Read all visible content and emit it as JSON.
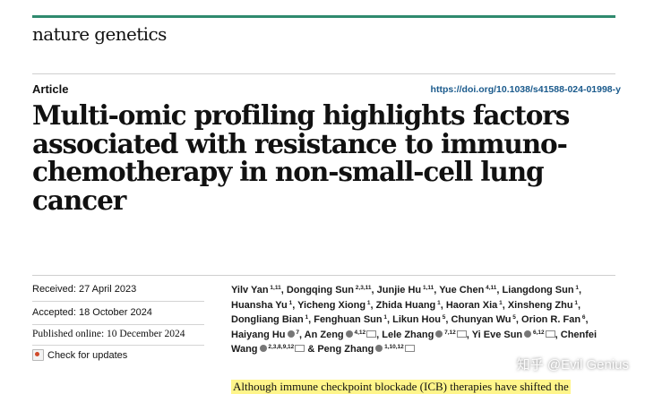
{
  "header": {
    "journal_name": "nature genetics",
    "article_type": "Article",
    "doi": "https://doi.org/10.1038/s41588-024-01998-y",
    "accent_color": "#2f8a6e"
  },
  "title": "Multi-omic profiling highlights factors associated with resistance to immuno-chemotherapy in non-small-cell lung cancer",
  "dates": {
    "received": "Received: 27 April 2023",
    "accepted": "Accepted: 18 October 2024",
    "published": "Published online: 10 December 2024"
  },
  "check_updates": {
    "label": "Check for updates",
    "icon": "check-updates-icon"
  },
  "authors": [
    {
      "name": "Yilv Yan",
      "sup": "1,11"
    },
    {
      "name": "Dongqing Sun",
      "sup": "2,3,11"
    },
    {
      "name": "Junjie Hu",
      "sup": "1,11"
    },
    {
      "name": "Yue Chen",
      "sup": "4,11"
    },
    {
      "name": "Liangdong Sun",
      "sup": "1"
    },
    {
      "name": "Huansha Yu",
      "sup": "1"
    },
    {
      "name": "Yicheng Xiong",
      "sup": "1"
    },
    {
      "name": "Zhida Huang",
      "sup": "1"
    },
    {
      "name": "Haoran Xia",
      "sup": "1"
    },
    {
      "name": "Xinsheng Zhu",
      "sup": "1"
    },
    {
      "name": "Dongliang Bian",
      "sup": "1"
    },
    {
      "name": "Fenghuan Sun",
      "sup": "1"
    },
    {
      "name": "Likun Hou",
      "sup": "5"
    },
    {
      "name": "Chunyan Wu",
      "sup": "5"
    },
    {
      "name": "Orion R. Fan",
      "sup": "6"
    },
    {
      "name": "Haiyang Hu",
      "sup": "7",
      "orcid": true
    },
    {
      "name": "An Zeng",
      "sup": "4,12",
      "orcid": true,
      "mail": true
    },
    {
      "name": "Lele Zhang",
      "sup": "7,12",
      "orcid": true,
      "mail": true
    },
    {
      "name": "Yi Eve Sun",
      "sup": "6,12",
      "orcid": true,
      "mail": true
    },
    {
      "name": "Chenfei Wang",
      "sup": "2,3,8,9,12",
      "orcid": true,
      "mail": true
    },
    {
      "name": "Peng Zhang",
      "sup": "1,10,12",
      "orcid": true,
      "mail": true
    }
  ],
  "authors_last_joiner": "&",
  "abstract_first_line": "Although immune checkpoint blockade (ICB) therapies have shifted the",
  "watermark": "知乎 @Evil Genius"
}
